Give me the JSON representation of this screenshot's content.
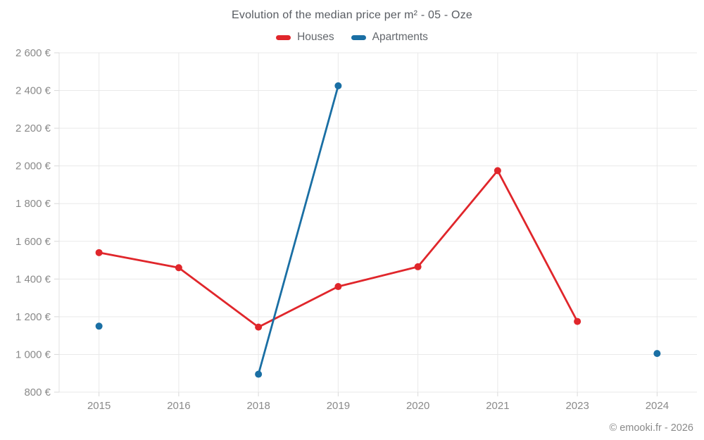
{
  "chart_data": {
    "type": "line",
    "title": "Evolution of the median price per m² - 05 - Oze",
    "categories": [
      "2015",
      "2016",
      "2018",
      "2019",
      "2020",
      "2021",
      "2023",
      "2024"
    ],
    "series": [
      {
        "name": "Houses",
        "color": "#e0262b",
        "values": [
          1540,
          1460,
          1145,
          1360,
          1465,
          1975,
          1175,
          null
        ]
      },
      {
        "name": "Apartments",
        "color": "#1a6fa4",
        "values": [
          1150,
          null,
          895,
          2425,
          null,
          null,
          null,
          1005
        ]
      }
    ],
    "xlabel": "",
    "ylabel": "",
    "ylim": [
      800,
      2600
    ],
    "yticks": [
      800,
      1000,
      1200,
      1400,
      1600,
      1800,
      2000,
      2200,
      2400,
      2600
    ],
    "ytick_labels": [
      "800 €",
      "1 000 €",
      "1 200 €",
      "1 400 €",
      "1 600 €",
      "1 800 €",
      "2 000 €",
      "2 200 €",
      "2 400 €",
      "2 600 €"
    ],
    "unit": "€",
    "grid": true,
    "legend_position": "top",
    "credit": "© emooki.fr - 2026",
    "colors": {
      "grid": "#e9e9e9",
      "axis_border": "#e0e0e0",
      "tick": "#d9d9d9",
      "tick_label": "#8a8a8a",
      "title_text": "#585c62",
      "legend_text": "#63676c",
      "credit_text": "#8a8a8a"
    }
  }
}
